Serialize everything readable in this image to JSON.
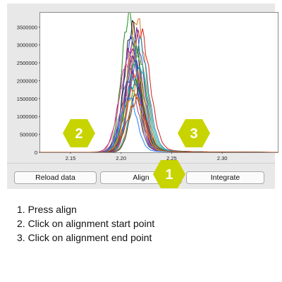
{
  "chart_data": {
    "type": "line",
    "x_ticks": [
      "2.15",
      "2.20",
      "2.25",
      "2.30"
    ],
    "y_ticks": [
      "0",
      "500000",
      "1000000",
      "1500000",
      "2000000",
      "2500000",
      "3000000",
      "3500000"
    ],
    "xlim": [
      2.12,
      2.355
    ],
    "ylim": [
      0,
      3900000
    ],
    "peak_center": 2.213,
    "series_peaks": [
      3750000,
      3600000,
      3400000,
      3300000,
      3200000,
      3100000,
      3000000,
      2900000,
      2800000,
      2700000,
      2600000,
      2500000,
      2450000,
      2400000,
      2300000,
      2200000,
      2100000,
      2000000,
      1900000,
      1800000,
      1700000,
      1600000,
      1500000,
      1400000
    ],
    "series_colors": [
      "#1a8f1a",
      "#e07020",
      "#1a1a1a",
      "#d02020",
      "#7030a0",
      "#2040c0",
      "#1090d0",
      "#a0a010",
      "#c02090",
      "#20a060",
      "#602080",
      "#d06080",
      "#3060f0",
      "#808080",
      "#20c0c0",
      "#f04040",
      "#4040a0",
      "#b08020",
      "#009060",
      "#a040a0",
      "#404040",
      "#e0a000",
      "#2080ff",
      "#c04000"
    ]
  },
  "buttons": {
    "reload": "Reload data",
    "align": "Align",
    "integrate": "Integrate"
  },
  "callouts": {
    "one": "1",
    "two": "2",
    "three": "3",
    "color": "#c8d400"
  },
  "instructions": {
    "line1": "1. Press align",
    "line2": "2. Click on alignment start point",
    "line3": "3. Click on alignment end point"
  }
}
